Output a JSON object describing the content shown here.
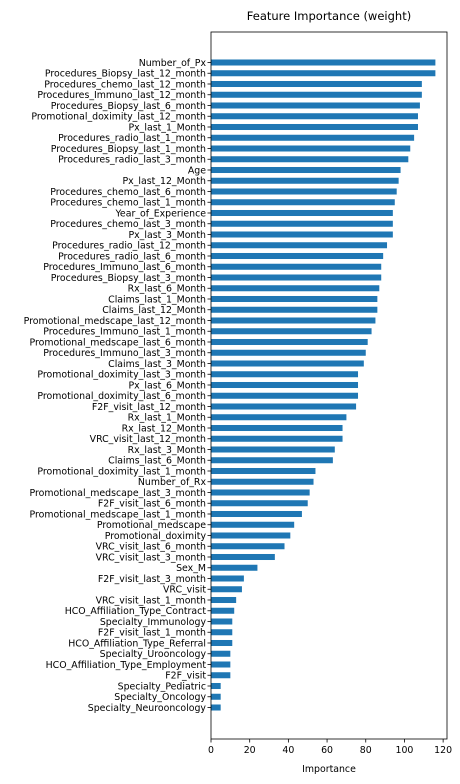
{
  "chart_data": {
    "type": "bar",
    "orientation": "horizontal",
    "title": "Feature Importance (weight)",
    "xlabel": "Importance",
    "ylabel": "",
    "xlim": [
      0,
      122
    ],
    "xticks": [
      0,
      20,
      40,
      60,
      80,
      100,
      120
    ],
    "grid": false,
    "legend": "none",
    "bar_color": "#1f77b4",
    "categories": [
      "Number_of_Px",
      "Procedures_Biopsy_last_12_month",
      "Procedures_chemo_last_12_month",
      "Procedures_Immuno_last_12_month",
      "Procedures_Biopsy_last_6_month",
      "Promotional_doximity_last_12_month",
      "Px_last_1_Month",
      "Procedures_radio_last_1_month",
      "Procedures_Biopsy_last_1_month",
      "Procedures_radio_last_3_month",
      "Age",
      "Px_last_12_Month",
      "Procedures_chemo_last_6_month",
      "Procedures_chemo_last_1_month",
      "Year_of_Experience",
      "Procedures_chemo_last_3_month",
      "Px_last_3_Month",
      "Procedures_radio_last_12_month",
      "Procedures_radio_last_6_month",
      "Procedures_Immuno_last_6_month",
      "Procedures_Biopsy_last_3_month",
      "Rx_last_6_Month",
      "Claims_last_1_Month",
      "Claims_last_12_Month",
      "Promotional_medscape_last_12_month",
      "Procedures_Immuno_last_1_month",
      "Promotional_medscape_last_6_month",
      "Procedures_Immuno_last_3_month",
      "Claims_last_3_Month",
      "Promotional_doximity_last_3_month",
      "Px_last_6_Month",
      "Promotional_doximity_last_6_month",
      "F2F_visit_last_12_month",
      "Rx_last_1_Month",
      "Rx_last_12_Month",
      "VRC_visit_last_12_month",
      "Rx_last_3_Month",
      "Claims_last_6_Month",
      "Promotional_doximity_last_1_month",
      "Number_of_Rx",
      "Promotional_medscape_last_3_month",
      "F2F_visit_last_6_month",
      "Promotional_medscape_last_1_month",
      "Promotional_medscape",
      "Promotional_doximity",
      "VRC_visit_last_6_month",
      "VRC_visit_last_3_month",
      "Sex_M",
      "F2F_visit_last_3_month",
      "VRC_visit",
      "VRC_visit_last_1_month",
      "HCO_Affiliation_Type_Contract",
      "Specialty_Immunology",
      "F2F_visit_last_1_month",
      "HCO_Affiliation_Type_Referral",
      "Specialty_Urooncology",
      "HCO_Affiliation_Type_Employment",
      "F2F_visit",
      "Specialty_Pediatric",
      "Specialty_Oncology",
      "Specialty_Neurooncology"
    ],
    "values": [
      116,
      116,
      109,
      109,
      108,
      107,
      107,
      105,
      103,
      102,
      98,
      97,
      96,
      95,
      94,
      94,
      94,
      91,
      89,
      88,
      88,
      87,
      86,
      86,
      85,
      83,
      81,
      80,
      79,
      76,
      76,
      76,
      75,
      70,
      68,
      68,
      64,
      63,
      54,
      53,
      51,
      50,
      47,
      43,
      41,
      38,
      33,
      24,
      17,
      16,
      13,
      12,
      11,
      11,
      11,
      10,
      10,
      10,
      5,
      5,
      5
    ]
  }
}
